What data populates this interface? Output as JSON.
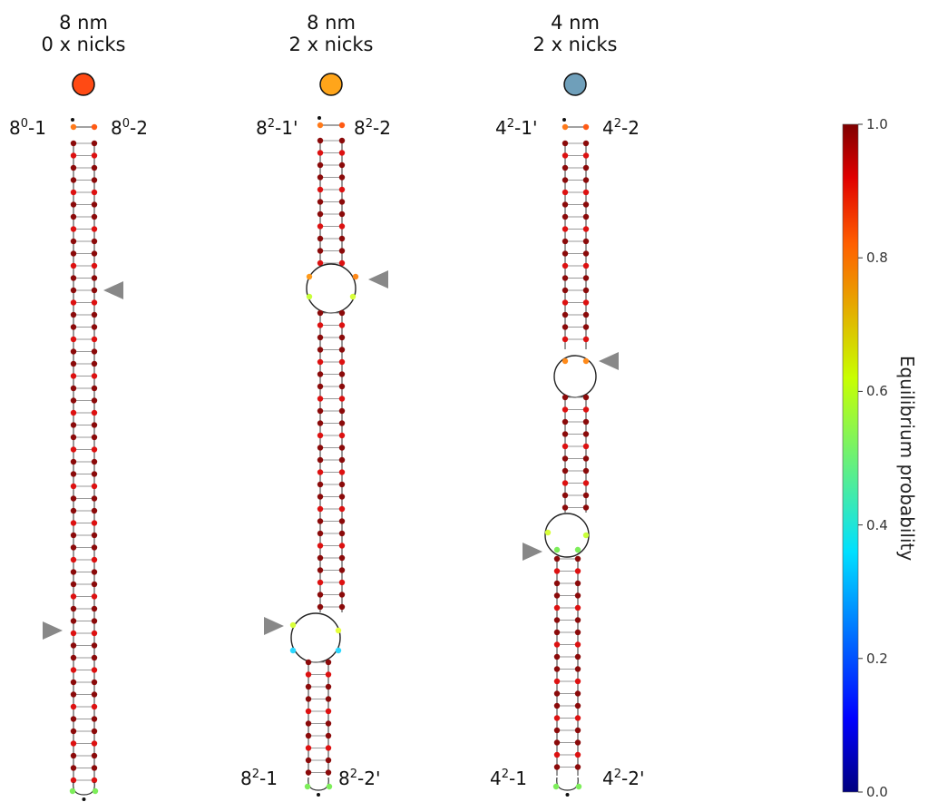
{
  "structures": [
    {
      "title_line1": "8 nm",
      "title_line2": "0 x nicks",
      "marker_color": "#ff4a14",
      "top_left": {
        "base": "8",
        "sup": "0",
        "suffix": "-1"
      },
      "top_right": {
        "base": "8",
        "sup": "0",
        "suffix": "-2"
      },
      "bottom_left": null,
      "bottom_right": null,
      "loops": []
    },
    {
      "title_line1": "8 nm",
      "title_line2": "2 x nicks",
      "marker_color": "#ffa51a",
      "top_left": {
        "base": "8",
        "sup": "2",
        "suffix": "-1'"
      },
      "top_right": {
        "base": "8",
        "sup": "2",
        "suffix": "-2"
      },
      "bottom_left": {
        "base": "8",
        "sup": "2",
        "suffix": "-1"
      },
      "bottom_right": {
        "base": "8",
        "sup": "2",
        "suffix": "-2'"
      },
      "loops": [
        "upper",
        "lower"
      ]
    },
    {
      "title_line1": "4 nm",
      "title_line2": "2 x nicks",
      "marker_color": "#6f9fba",
      "top_left": {
        "base": "4",
        "sup": "2",
        "suffix": "-1'"
      },
      "top_right": {
        "base": "4",
        "sup": "2",
        "suffix": "-2"
      },
      "bottom_left": {
        "base": "4",
        "sup": "2",
        "suffix": "-1"
      },
      "bottom_right": {
        "base": "4",
        "sup": "2",
        "suffix": "-2'"
      },
      "loops": [
        "upper",
        "lower"
      ]
    }
  ],
  "nick_marker": "triangle-pointer-icon",
  "colorbar": {
    "title": "Equilibrium probability",
    "ticks": [
      "0.0",
      "0.2",
      "0.4",
      "0.6",
      "0.8",
      "1.0"
    ],
    "range": [
      0.0,
      1.0
    ],
    "colormap": "jet"
  }
}
